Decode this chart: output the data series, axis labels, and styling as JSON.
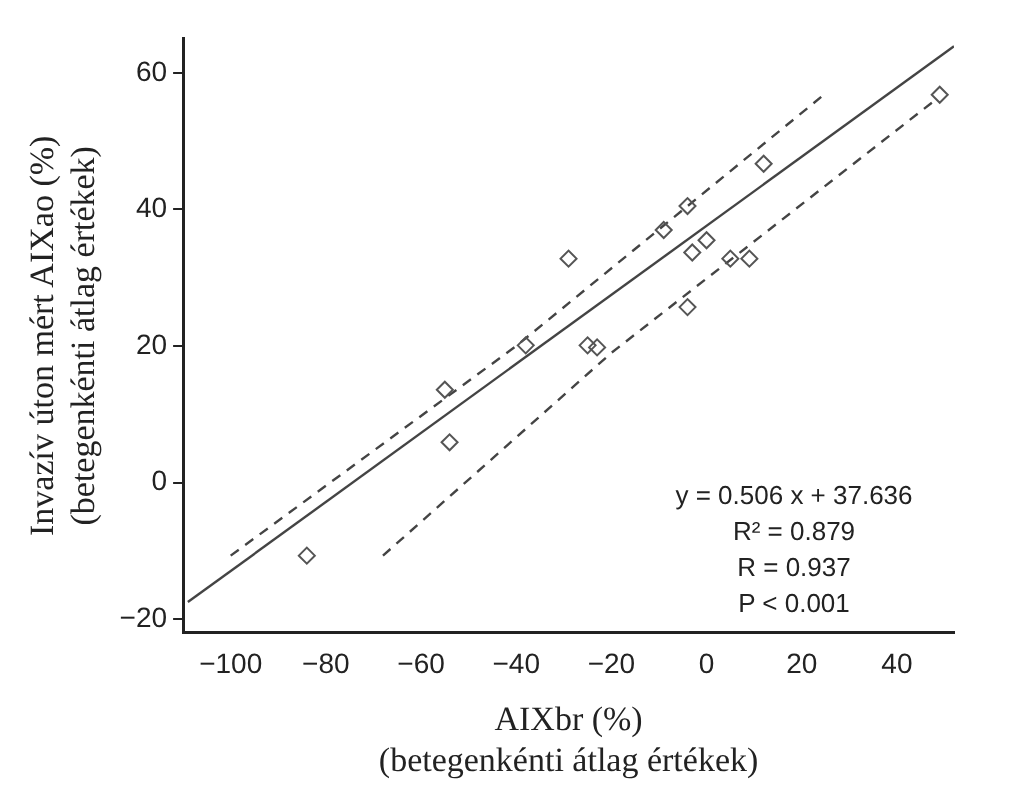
{
  "chart_data": {
    "type": "scatter",
    "xlabel": "AIXbr (%)\n(betegenkénti átlag értékek)",
    "ylabel": "Invazív úton mért AIXao (%)\n(betegenkénti átlag értékek)",
    "xlim": [
      -110,
      52
    ],
    "ylim": [
      -22,
      65
    ],
    "xticks": [
      -100,
      -80,
      -60,
      -40,
      -20,
      0,
      20,
      40
    ],
    "yticks": [
      -20,
      0,
      20,
      40,
      60
    ],
    "grid": false,
    "legend": false,
    "marker": "diamond",
    "series": [
      {
        "color": "#555555",
        "x": [
          -84,
          -55,
          -54,
          -38,
          -29,
          -25,
          -23,
          -9,
          -4,
          -3,
          0,
          -4,
          5,
          9,
          12,
          49
        ],
        "values": [
          -10.7,
          13.6,
          5.9,
          20.1,
          32.8,
          20.1,
          19.8,
          37,
          40.5,
          33.7,
          35.5,
          25.7,
          32.8,
          32.8,
          46.7,
          56.8
        ]
      },
      {
        "type": "line",
        "color": "#444444",
        "line_style": "solid",
        "marker": "none",
        "x": [
          -109,
          52
        ],
        "values": [
          -17.5,
          63.9
        ]
      },
      {
        "type": "line",
        "color": "#444444",
        "line_style": "dashed",
        "marker": "none",
        "x": [
          -100,
          -40,
          25
        ],
        "values": [
          -10.7,
          20,
          57
        ]
      },
      {
        "type": "line",
        "color": "#444444",
        "line_style": "dashed",
        "marker": "none",
        "x": [
          -68,
          -20,
          48
        ],
        "values": [
          -10.7,
          19,
          56
        ]
      }
    ],
    "annotations": [
      "y = 0.506 x + 37.636",
      "R² = 0.879",
      "R = 0.937",
      "P < 0.001"
    ]
  }
}
